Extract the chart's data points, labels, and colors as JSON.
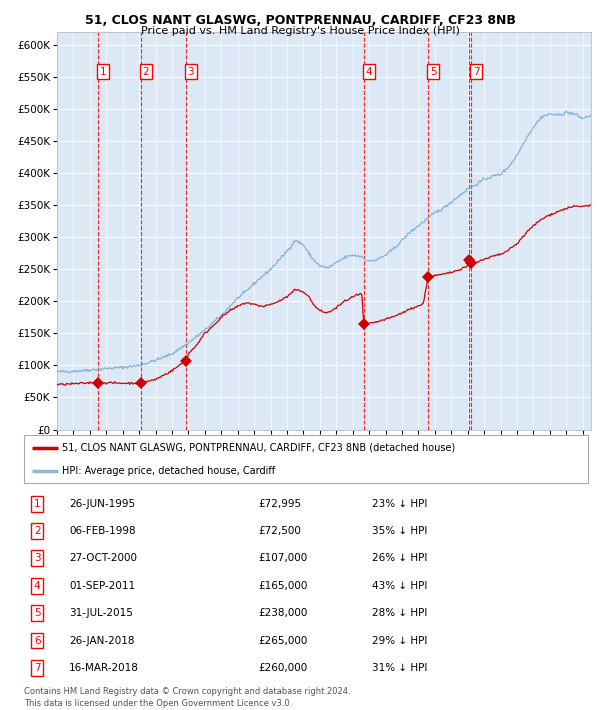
{
  "title1": "51, CLOS NANT GLASWG, PONTPRENNAU, CARDIFF, CF23 8NB",
  "title2": "Price paid vs. HM Land Registry's House Price Index (HPI)",
  "plot_bg_color": "#dce8f5",
  "grid_color": "#ffffff",
  "hpi_color": "#7aadd4",
  "price_color": "#cc0000",
  "transactions": [
    {
      "num": 1,
      "price": 72995,
      "x": 1995.486
    },
    {
      "num": 2,
      "price": 72500,
      "x": 1998.097
    },
    {
      "num": 3,
      "price": 107000,
      "x": 2000.822
    },
    {
      "num": 4,
      "price": 165000,
      "x": 2011.664
    },
    {
      "num": 5,
      "price": 238000,
      "x": 2015.578
    },
    {
      "num": 6,
      "price": 265000,
      "x": 2018.069
    },
    {
      "num": 7,
      "price": 260000,
      "x": 2018.203
    }
  ],
  "shown_boxes": [
    1,
    2,
    3,
    4,
    5,
    7
  ],
  "legend_house_label": "51, CLOS NANT GLASWG, PONTPRENNAU, CARDIFF, CF23 8NB (detached house)",
  "legend_hpi_label": "HPI: Average price, detached house, Cardiff",
  "table_rows": [
    {
      "num": 1,
      "date": "26-JUN-1995",
      "price": "£72,995",
      "note": "23% ↓ HPI"
    },
    {
      "num": 2,
      "date": "06-FEB-1998",
      "price": "£72,500",
      "note": "35% ↓ HPI"
    },
    {
      "num": 3,
      "date": "27-OCT-2000",
      "price": "£107,000",
      "note": "26% ↓ HPI"
    },
    {
      "num": 4,
      "date": "01-SEP-2011",
      "price": "£165,000",
      "note": "43% ↓ HPI"
    },
    {
      "num": 5,
      "date": "31-JUL-2015",
      "price": "£238,000",
      "note": "28% ↓ HPI"
    },
    {
      "num": 6,
      "date": "26-JAN-2018",
      "price": "£265,000",
      "note": "29% ↓ HPI"
    },
    {
      "num": 7,
      "date": "16-MAR-2018",
      "price": "£260,000",
      "note": "31% ↓ HPI"
    }
  ],
  "footer1": "Contains HM Land Registry data © Crown copyright and database right 2024.",
  "footer2": "This data is licensed under the Open Government Licence v3.0.",
  "xmin": 1993.0,
  "xmax": 2025.5,
  "ymin": 0,
  "ymax": 620000,
  "yticks": [
    0,
    50000,
    100000,
    150000,
    200000,
    250000,
    300000,
    350000,
    400000,
    450000,
    500000,
    550000,
    600000
  ],
  "hpi_anchors": [
    [
      1993.0,
      90000
    ],
    [
      1994.0,
      91000
    ],
    [
      1995.0,
      93000
    ],
    [
      1996.0,
      95000
    ],
    [
      1997.0,
      97000
    ],
    [
      1998.0,
      100000
    ],
    [
      1999.0,
      108000
    ],
    [
      2000.0,
      118000
    ],
    [
      2001.0,
      135000
    ],
    [
      2002.0,
      155000
    ],
    [
      2003.0,
      178000
    ],
    [
      2004.0,
      205000
    ],
    [
      2004.5,
      215000
    ],
    [
      2005.0,
      228000
    ],
    [
      2006.0,
      250000
    ],
    [
      2007.0,
      278000
    ],
    [
      2007.5,
      295000
    ],
    [
      2008.0,
      288000
    ],
    [
      2008.5,
      268000
    ],
    [
      2009.0,
      255000
    ],
    [
      2009.5,
      252000
    ],
    [
      2010.0,
      260000
    ],
    [
      2010.5,
      268000
    ],
    [
      2011.0,
      272000
    ],
    [
      2011.5,
      270000
    ],
    [
      2012.0,
      262000
    ],
    [
      2012.5,
      265000
    ],
    [
      2013.0,
      272000
    ],
    [
      2013.5,
      282000
    ],
    [
      2014.0,
      295000
    ],
    [
      2014.5,
      308000
    ],
    [
      2015.0,
      318000
    ],
    [
      2015.5,
      328000
    ],
    [
      2016.0,
      338000
    ],
    [
      2016.5,
      345000
    ],
    [
      2017.0,
      355000
    ],
    [
      2017.5,
      365000
    ],
    [
      2018.0,
      375000
    ],
    [
      2018.5,
      382000
    ],
    [
      2019.0,
      390000
    ],
    [
      2019.5,
      395000
    ],
    [
      2020.0,
      398000
    ],
    [
      2020.5,
      410000
    ],
    [
      2021.0,
      428000
    ],
    [
      2021.5,
      452000
    ],
    [
      2022.0,
      472000
    ],
    [
      2022.5,
      488000
    ],
    [
      2023.0,
      492000
    ],
    [
      2023.5,
      490000
    ],
    [
      2024.0,
      495000
    ],
    [
      2024.5,
      492000
    ],
    [
      2025.0,
      485000
    ],
    [
      2025.5,
      490000
    ]
  ],
  "price_anchors": [
    [
      1993.0,
      70000
    ],
    [
      1994.5,
      72000
    ],
    [
      1995.0,
      72995
    ],
    [
      1995.5,
      73500
    ],
    [
      1996.0,
      73000
    ],
    [
      1997.0,
      72200
    ],
    [
      1998.0,
      72500
    ],
    [
      1999.0,
      78000
    ],
    [
      2000.0,
      92000
    ],
    [
      2000.82,
      107000
    ],
    [
      2001.0,
      118000
    ],
    [
      2001.5,
      132000
    ],
    [
      2002.0,
      150000
    ],
    [
      2002.5,
      162000
    ],
    [
      2003.0,
      175000
    ],
    [
      2003.5,
      185000
    ],
    [
      2004.0,
      192000
    ],
    [
      2004.5,
      198000
    ],
    [
      2005.0,
      195000
    ],
    [
      2005.5,
      192000
    ],
    [
      2006.0,
      195000
    ],
    [
      2006.5,
      200000
    ],
    [
      2007.0,
      207000
    ],
    [
      2007.5,
      218000
    ],
    [
      2008.0,
      215000
    ],
    [
      2008.3,
      208000
    ],
    [
      2008.6,
      195000
    ],
    [
      2009.0,
      185000
    ],
    [
      2009.5,
      182000
    ],
    [
      2010.0,
      190000
    ],
    [
      2010.5,
      200000
    ],
    [
      2011.0,
      207000
    ],
    [
      2011.3,
      210000
    ],
    [
      2011.55,
      212000
    ],
    [
      2011.66,
      165000
    ],
    [
      2011.8,
      163000
    ],
    [
      2012.0,
      165000
    ],
    [
      2012.5,
      168000
    ],
    [
      2013.0,
      172000
    ],
    [
      2013.5,
      176000
    ],
    [
      2014.0,
      182000
    ],
    [
      2014.5,
      188000
    ],
    [
      2015.0,
      193000
    ],
    [
      2015.3,
      196000
    ],
    [
      2015.58,
      238000
    ],
    [
      2015.8,
      239000
    ],
    [
      2016.0,
      240000
    ],
    [
      2016.5,
      242000
    ],
    [
      2017.0,
      245000
    ],
    [
      2017.5,
      250000
    ],
    [
      2018.0,
      255000
    ],
    [
      2018.07,
      265000
    ],
    [
      2018.2,
      260000
    ],
    [
      2018.5,
      261000
    ],
    [
      2019.0,
      265000
    ],
    [
      2019.5,
      270000
    ],
    [
      2020.0,
      273000
    ],
    [
      2020.5,
      280000
    ],
    [
      2021.0,
      290000
    ],
    [
      2021.5,
      305000
    ],
    [
      2022.0,
      318000
    ],
    [
      2022.5,
      328000
    ],
    [
      2023.0,
      335000
    ],
    [
      2023.5,
      340000
    ],
    [
      2024.0,
      345000
    ],
    [
      2024.5,
      348000
    ],
    [
      2025.0,
      348000
    ],
    [
      2025.5,
      350000
    ]
  ]
}
